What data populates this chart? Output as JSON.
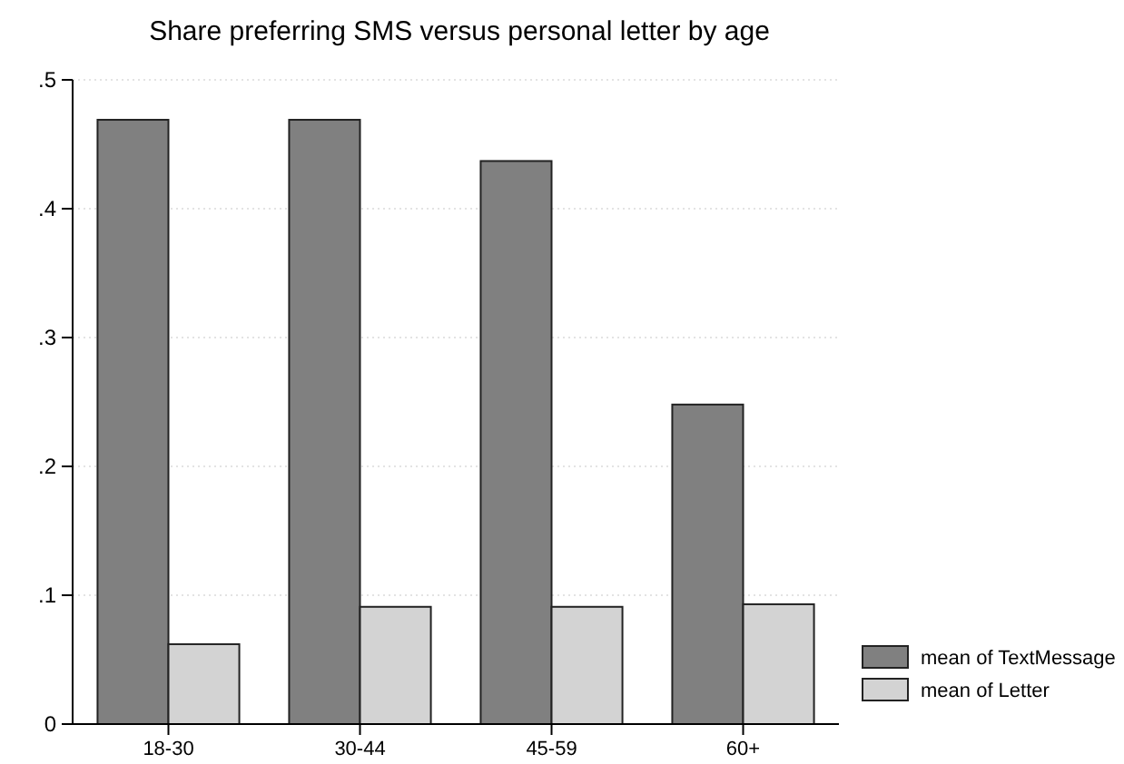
{
  "chart_data": {
    "type": "bar",
    "title": "Share preferring SMS versus personal letter by age",
    "categories": [
      "18-30",
      "30-44",
      "45-59",
      "60+"
    ],
    "series": [
      {
        "name": "mean of TextMessage",
        "color": "#808080",
        "values": [
          0.469,
          0.469,
          0.437,
          0.248
        ]
      },
      {
        "name": "mean of Letter",
        "color": "#d3d3d3",
        "values": [
          0.062,
          0.091,
          0.091,
          0.093
        ]
      }
    ],
    "ylim": [
      0,
      0.5
    ],
    "yticks": [
      0,
      {
        "value": 0.1,
        "label": ".1"
      },
      {
        "value": 0.2,
        "label": ".2"
      },
      {
        "value": 0.3,
        "label": ".3"
      },
      {
        "value": 0.4,
        "label": ".4"
      },
      {
        "value": 0.5,
        "label": ".5"
      }
    ],
    "grid": "y",
    "legend": "right"
  }
}
